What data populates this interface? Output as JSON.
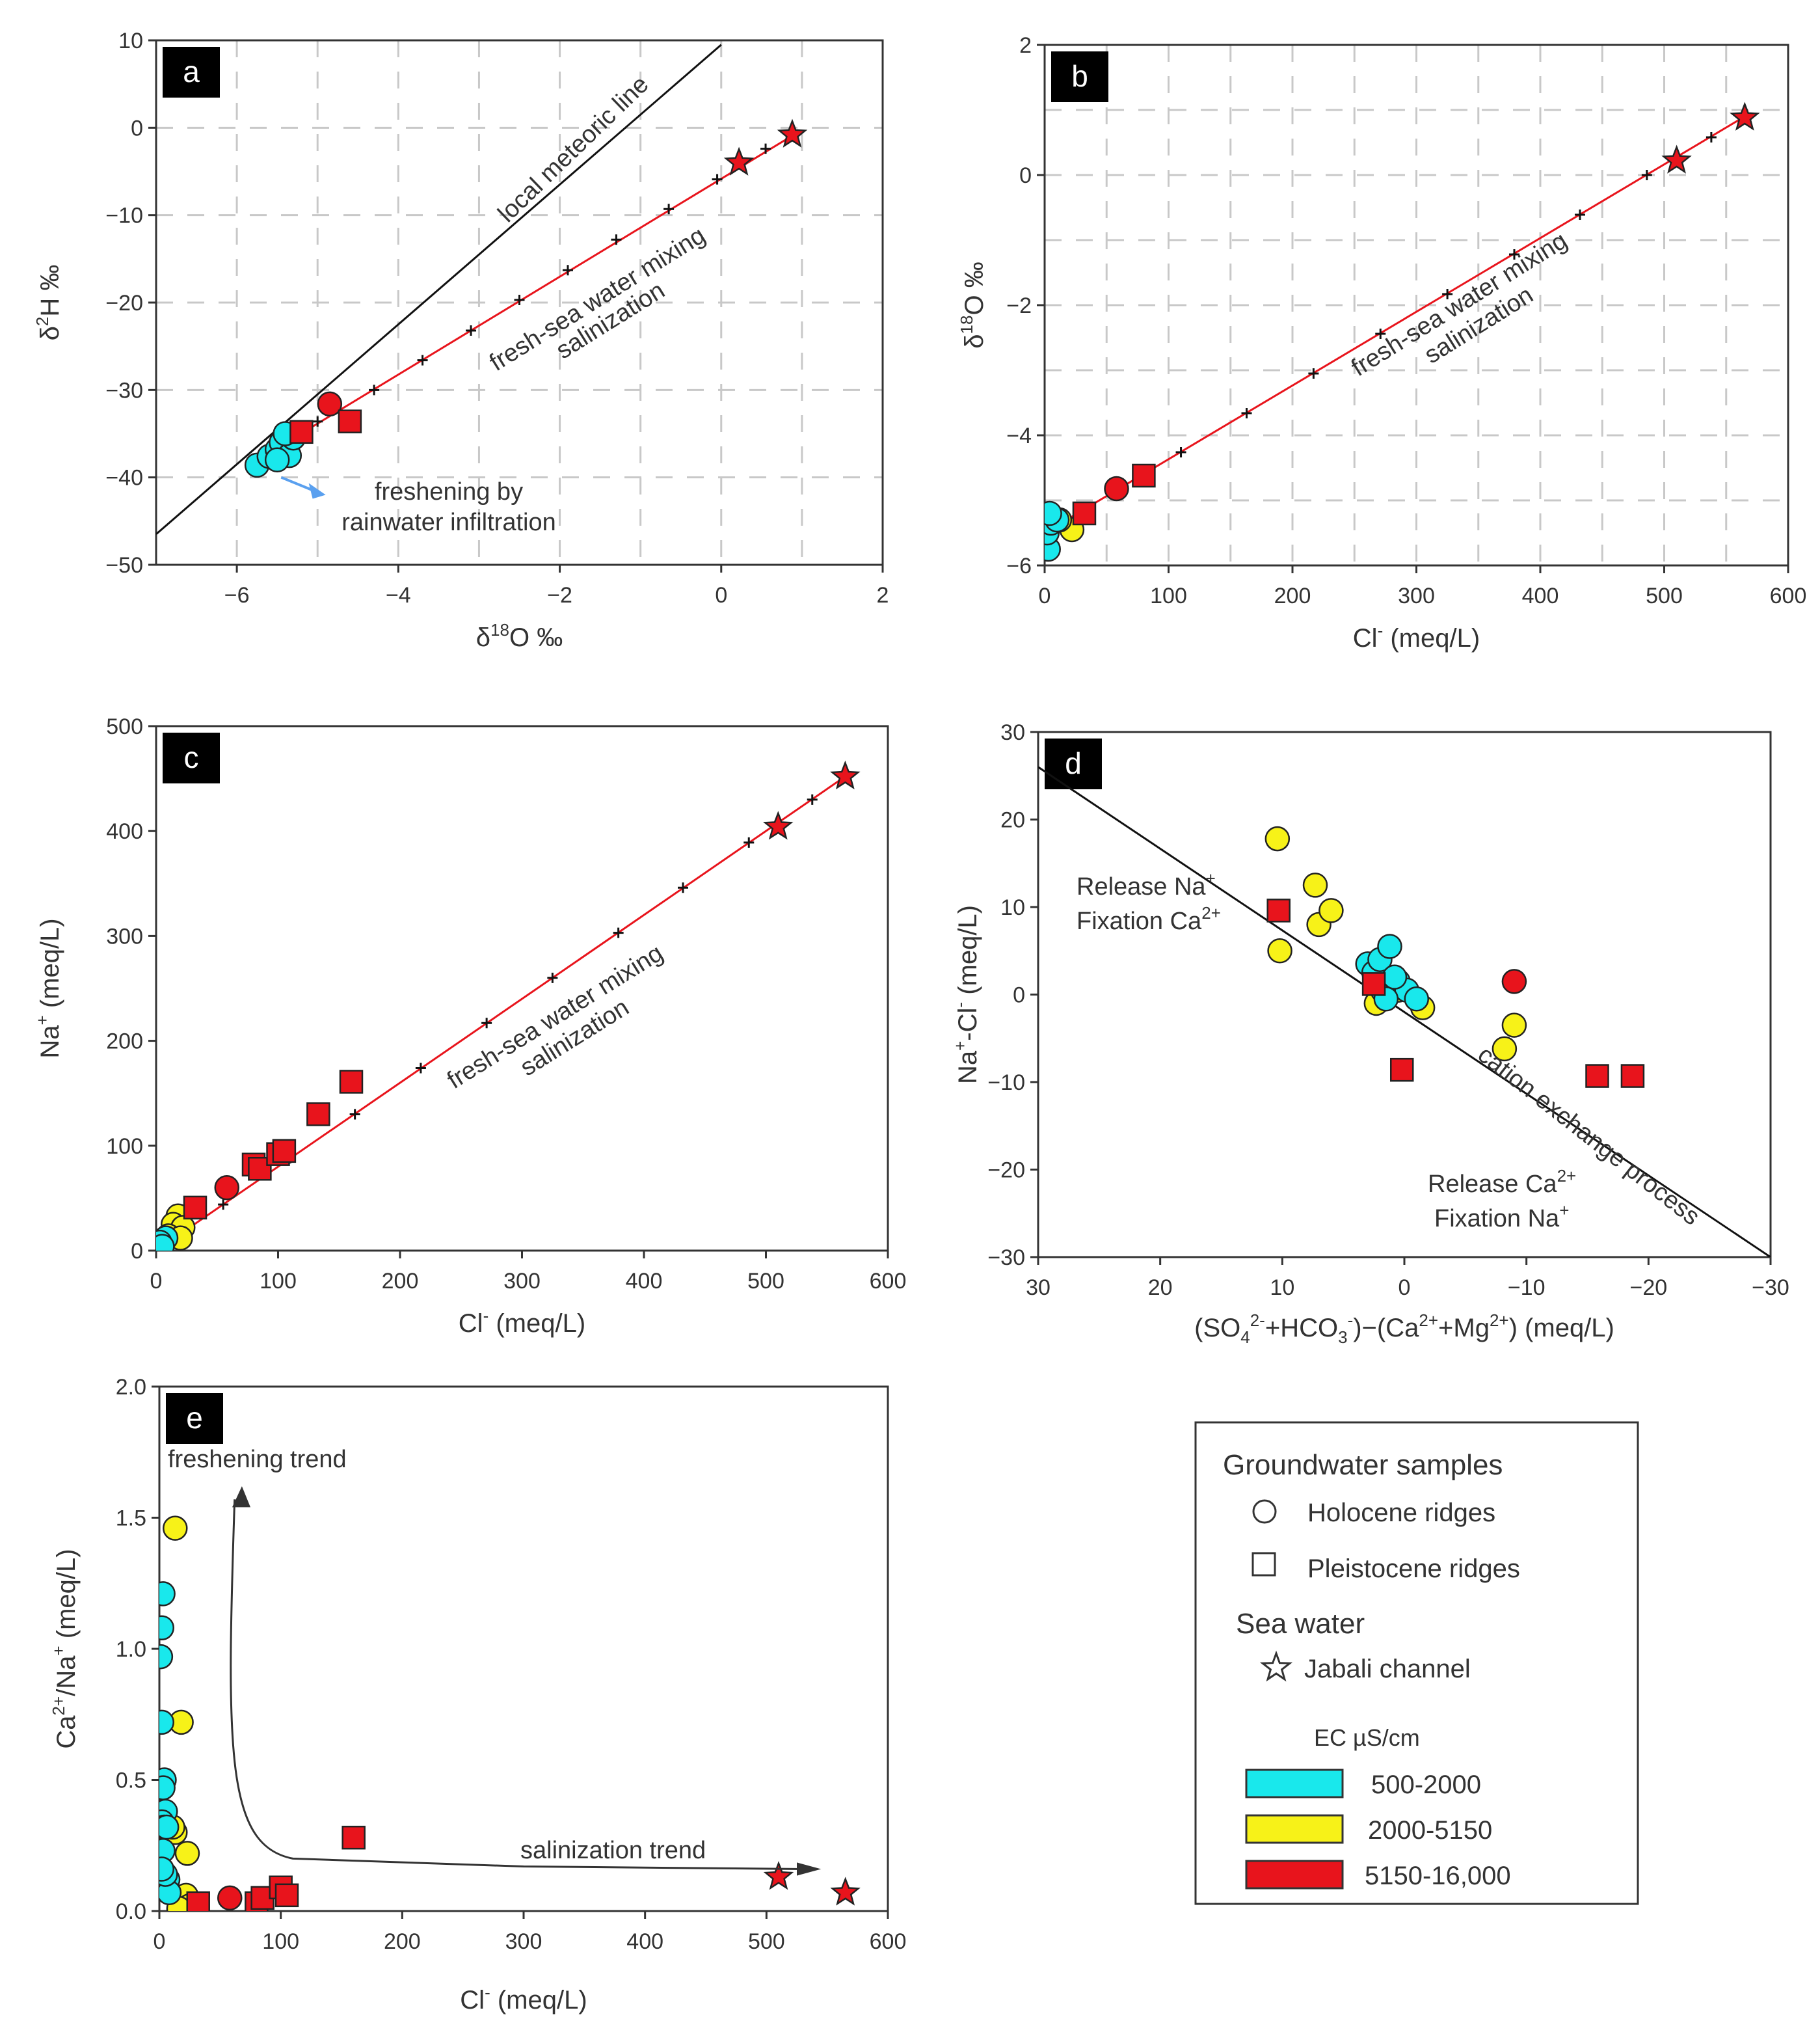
{
  "colors": {
    "cyan": "#19e8ec",
    "yellow": "#f7f218",
    "red": "#e8141c",
    "line_red": "#e8141c",
    "arrow_blue": "#5aa0ef",
    "grid": "#c8c8c8",
    "axis": "#333333"
  },
  "chart_data": [
    {
      "id": "a",
      "type": "scatter",
      "panel_label": "a",
      "xlabel": "δ18O ‰",
      "xlabel_main": "δ",
      "xlabel_sup": "18",
      "xlabel_tail": "O ‰",
      "ylabel": "δ2H ‰",
      "ylabel_main": "δ",
      "ylabel_sup": "2",
      "ylabel_tail": "H ‰",
      "xlim": [
        -7,
        2
      ],
      "ylim": [
        -50,
        10
      ],
      "xticks": [
        -6,
        -4,
        -2,
        0,
        2
      ],
      "xtick_labels": [
        "−6",
        "−4",
        "−2",
        "0",
        "2"
      ],
      "yticks": [
        10,
        0,
        -10,
        -20,
        -30,
        -40,
        -50
      ],
      "ytick_labels": [
        "10",
        "0",
        "−10",
        "−20",
        "−30",
        "−40",
        "−50"
      ],
      "grid": true,
      "meteoric_line": {
        "x": [
          -7,
          0
        ],
        "y": [
          -46.5,
          9.5
        ]
      },
      "mixing_line": {
        "x": [
          -5.6,
          0.9
        ],
        "y": [
          -37.2,
          -0.8
        ]
      },
      "mixing_ticks": {
        "x": [
          -5.0,
          -4.3,
          -3.7,
          -3.1,
          -2.5,
          -1.9,
          -1.3,
          -0.65,
          -0.05,
          0.55
        ],
        "y": [
          -33.6,
          -30.0,
          -26.6,
          -23.2,
          -19.7,
          -16.3,
          -12.8,
          -9.3,
          -5.9,
          -2.4
        ]
      },
      "annotations": [
        "local meteoric line",
        "fresh-sea water mixing",
        "salinization",
        "freshening by",
        "rainwater infiltration"
      ],
      "series": [
        {
          "name": "Holocene ridges 500-2000",
          "marker": "circle",
          "color": "cyan",
          "x": [
            -5.75,
            -5.6,
            -5.5,
            -5.45,
            -5.35,
            -5.3,
            -5.5,
            -5.4
          ],
          "y": [
            -38.6,
            -37.6,
            -36.8,
            -36.0,
            -37.5,
            -35.5,
            -38.0,
            -35.0
          ]
        },
        {
          "name": "Holocene ridges 5150-16,000",
          "marker": "circle",
          "color": "red",
          "x": [
            -4.85
          ],
          "y": [
            -31.6
          ]
        },
        {
          "name": "Pleistocene ridges 5150-16,000",
          "marker": "square",
          "color": "red",
          "x": [
            -5.2,
            -4.6
          ],
          "y": [
            -34.8,
            -33.6
          ]
        },
        {
          "name": "Jabali channel",
          "marker": "star",
          "color": "red",
          "x": [
            0.22,
            0.88
          ],
          "y": [
            -4.0,
            -0.8
          ]
        }
      ]
    },
    {
      "id": "b",
      "type": "scatter",
      "panel_label": "b",
      "xlabel": "Cl- (meq/L)",
      "xlabel_main": "Cl",
      "xlabel_sup": "-",
      "xlabel_tail": " (meq/L)",
      "ylabel": "δ18O ‰",
      "ylabel_main": "δ",
      "ylabel_sup": "18",
      "ylabel_tail": "O ‰",
      "xlim": [
        0,
        600
      ],
      "ylim": [
        -6,
        2
      ],
      "xticks": [
        0,
        100,
        200,
        300,
        400,
        500,
        600
      ],
      "xtick_labels": [
        "0",
        "100",
        "200",
        "300",
        "400",
        "500",
        "600"
      ],
      "yticks": [
        2,
        0,
        -2,
        -4,
        -6
      ],
      "ytick_labels": [
        "2",
        "0",
        "−2",
        "−4",
        "−6"
      ],
      "grid": true,
      "mixing_line": {
        "x": [
          0,
          565
        ],
        "y": [
          -5.5,
          0.9
        ]
      },
      "mixing_ticks": {
        "x": [
          0,
          55,
          110,
          163,
          217,
          271,
          325,
          379,
          432,
          486,
          538
        ],
        "y": [
          -5.5,
          -4.88,
          -4.26,
          -3.66,
          -3.05,
          -2.44,
          -1.83,
          -1.22,
          -0.61,
          0.0,
          0.58
        ]
      },
      "annotations": [
        "fresh-sea water mixing",
        "salinization"
      ],
      "series": [
        {
          "name": "Holocene ridges 2000-5150",
          "marker": "circle",
          "color": "yellow",
          "x": [
            22,
            12
          ],
          "y": [
            -5.45,
            -5.3
          ]
        },
        {
          "name": "Holocene ridges 500-2000",
          "marker": "circle",
          "color": "cyan",
          "x": [
            3,
            2,
            5,
            10,
            4
          ],
          "y": [
            -5.75,
            -5.5,
            -5.35,
            -5.3,
            -5.2
          ]
        },
        {
          "name": "Holocene ridges 5150-16,000",
          "marker": "circle",
          "color": "red",
          "x": [
            58
          ],
          "y": [
            -4.82
          ]
        },
        {
          "name": "Pleistocene ridges 5150-16,000",
          "marker": "square",
          "color": "red",
          "x": [
            32,
            80
          ],
          "y": [
            -5.2,
            -4.62
          ]
        },
        {
          "name": "Jabali channel",
          "marker": "star",
          "color": "red",
          "x": [
            510,
            565
          ],
          "y": [
            0.22,
            0.88
          ]
        }
      ]
    },
    {
      "id": "c",
      "type": "scatter",
      "panel_label": "c",
      "xlabel": "Cl- (meq/L)",
      "xlabel_main": "Cl",
      "xlabel_sup": "-",
      "xlabel_tail": " (meq/L)",
      "ylabel": "Na+ (meq/L)",
      "ylabel_main": "Na",
      "ylabel_sup": "+",
      "ylabel_tail": " (meq/L)",
      "xlim": [
        0,
        600
      ],
      "ylim": [
        0,
        500
      ],
      "xticks": [
        0,
        100,
        200,
        300,
        400,
        500,
        600
      ],
      "xtick_labels": [
        "0",
        "100",
        "200",
        "300",
        "400",
        "500",
        "600"
      ],
      "yticks": [
        500,
        400,
        300,
        200,
        100,
        0
      ],
      "ytick_labels": [
        "500",
        "400",
        "300",
        "200",
        "100",
        "0"
      ],
      "grid": false,
      "mixing_line": {
        "x": [
          0,
          565
        ],
        "y": [
          0,
          452
        ]
      },
      "mixing_ticks": {
        "x": [
          55,
          110,
          163,
          217,
          271,
          325,
          379,
          432,
          486,
          538
        ],
        "y": [
          44,
          88,
          130,
          174,
          217,
          260,
          303,
          346,
          389,
          430
        ]
      },
      "annotations": [
        "fresh-sea water mixing",
        "salinization"
      ],
      "series": [
        {
          "name": "Holocene ridges 2000-5150",
          "marker": "circle",
          "color": "yellow",
          "x": [
            18,
            14,
            22,
            10,
            20
          ],
          "y": [
            33,
            25,
            22,
            14,
            12
          ]
        },
        {
          "name": "Holocene ridges 500-2000",
          "marker": "circle",
          "color": "cyan",
          "x": [
            2,
            4,
            6,
            8,
            3,
            5
          ],
          "y": [
            3,
            6,
            9,
            12,
            8,
            4
          ]
        },
        {
          "name": "Holocene ridges 5150-16,000",
          "marker": "circle",
          "color": "red",
          "x": [
            58
          ],
          "y": [
            60
          ]
        },
        {
          "name": "Pleistocene ridges 5150-16,000",
          "marker": "square",
          "color": "red",
          "x": [
            32,
            80,
            85,
            100,
            105,
            133,
            160
          ],
          "y": [
            41,
            82,
            78,
            92,
            95,
            130,
            161
          ]
        },
        {
          "name": "Jabali channel",
          "marker": "star",
          "color": "red",
          "x": [
            510,
            565
          ],
          "y": [
            404,
            452
          ]
        }
      ]
    },
    {
      "id": "d",
      "type": "scatter",
      "panel_label": "d",
      "xlabel": "(SO42-+HCO3-)−(Ca2++Mg2+)  (meq/L)",
      "ylabel": "Na+-Cl- (meq/L)",
      "ylabel_main": "Na",
      "ylabel_sup": "+",
      "ylabel_tail": "-Cl",
      "ylabel_sup2": "-",
      "ylabel_tail2": " (meq/L)",
      "xlim": [
        30,
        -30
      ],
      "ylim": [
        -30,
        30
      ],
      "xticks": [
        30,
        20,
        10,
        0,
        -10,
        -20,
        -30
      ],
      "xtick_labels": [
        "30",
        "20",
        "10",
        "0",
        "−10",
        "−20",
        "−30"
      ],
      "yticks": [
        30,
        20,
        10,
        0,
        -10,
        -20,
        -30
      ],
      "ytick_labels": [
        "30",
        "20",
        "10",
        "0",
        "−10",
        "−20",
        "−30"
      ],
      "grid": false,
      "exchange_line": {
        "x": [
          30,
          -30
        ],
        "y": [
          26,
          -30
        ]
      },
      "annotations": [
        "Release Na+",
        "Fixation Ca2+",
        "Release Ca2+",
        "Fixation Na+",
        "cation exchange process"
      ],
      "series": [
        {
          "name": "Holocene ridges 2000-5150",
          "marker": "circle",
          "color": "yellow",
          "x": [
            10.4,
            10.2,
            7.3,
            7.0,
            6.0,
            2.3,
            0.5,
            -1.5,
            -8.2,
            -9.0
          ],
          "y": [
            17.8,
            5.0,
            12.5,
            8.0,
            9.6,
            -1.0,
            0.5,
            -1.5,
            -6.2,
            -3.5
          ]
        },
        {
          "name": "Holocene ridges 500-2000",
          "marker": "circle",
          "color": "cyan",
          "x": [
            3.0,
            2.5,
            2.0,
            1.8,
            1.2,
            0.5,
            -0.2,
            -1.0,
            1.5,
            0.8
          ],
          "y": [
            3.5,
            2.5,
            4.0,
            0.5,
            5.5,
            1.5,
            0.5,
            -0.5,
            -0.5,
            2.0
          ]
        },
        {
          "name": "Holocene ridges 5150-16,000",
          "marker": "circle",
          "color": "red",
          "x": [
            -9.0
          ],
          "y": [
            1.5
          ]
        },
        {
          "name": "Pleistocene ridges 5150-16,000",
          "marker": "square",
          "color": "red",
          "x": [
            10.3,
            2.5,
            0.2,
            -15.8,
            -18.7
          ],
          "y": [
            9.6,
            1.2,
            -8.6,
            -9.3,
            -9.3
          ]
        }
      ]
    },
    {
      "id": "e",
      "type": "scatter",
      "panel_label": "e",
      "xlabel": "Cl- (meq/L)",
      "xlabel_main": "Cl",
      "xlabel_sup": "-",
      "xlabel_tail": " (meq/L)",
      "ylabel": "Ca2+/Na+ (meq/L)",
      "ylabel_main": "Ca",
      "ylabel_sup": "2+",
      "ylabel_tail": "/Na",
      "ylabel_sup2": "+",
      "ylabel_tail2": " (meq/L)",
      "xlim": [
        0,
        600
      ],
      "ylim": [
        0,
        2.0
      ],
      "xticks": [
        0,
        100,
        200,
        300,
        400,
        500,
        600
      ],
      "xtick_labels": [
        "0",
        "100",
        "200",
        "300",
        "400",
        "500",
        "600"
      ],
      "yticks": [
        2.0,
        1.5,
        1.0,
        0.5,
        0.0
      ],
      "ytick_labels": [
        "2.0",
        "1.5",
        "1.0",
        "0.5",
        "0.0"
      ],
      "grid": false,
      "annotations": [
        "freshening trend",
        "salinization trend"
      ],
      "series": [
        {
          "name": "Holocene ridges 2000-5150",
          "marker": "circle",
          "color": "yellow",
          "x": [
            13,
            18,
            23,
            13,
            15,
            22,
            20,
            25,
            16,
            11
          ],
          "y": [
            1.46,
            0.72,
            0.22,
            0.3,
            0.05,
            0.06,
            0.0,
            0.02,
            0.01,
            0.32
          ]
        },
        {
          "name": "Holocene ridges 500-2000",
          "marker": "circle",
          "color": "cyan",
          "x": [
            3,
            2,
            1,
            2,
            4,
            3,
            5,
            2,
            4,
            3,
            6,
            7,
            8,
            5,
            2
          ],
          "y": [
            1.21,
            1.08,
            0.97,
            0.72,
            0.5,
            0.47,
            0.38,
            0.34,
            0.32,
            0.23,
            0.32,
            0.12,
            0.07,
            0.14,
            0.16
          ]
        },
        {
          "name": "Holocene ridges 5150-16,000",
          "marker": "circle",
          "color": "red",
          "x": [
            58
          ],
          "y": [
            0.05
          ]
        },
        {
          "name": "Pleistocene ridges 5150-16,000",
          "marker": "square",
          "color": "red",
          "x": [
            32,
            80,
            85,
            100,
            105,
            160
          ],
          "y": [
            0.03,
            0.03,
            0.05,
            0.09,
            0.06,
            0.28
          ]
        },
        {
          "name": "Jabali channel",
          "marker": "star",
          "color": "red",
          "x": [
            510,
            565
          ],
          "y": [
            0.13,
            0.07
          ]
        }
      ]
    }
  ],
  "legend": {
    "groundwater_title": "Groundwater samples",
    "holocene": "Holocene ridges",
    "pleistocene": "Pleistocene ridges",
    "seawater_title": "Sea water",
    "jabali": "Jabali channel",
    "ec_title": "EC µS/cm",
    "ec_classes": [
      {
        "label": "500-2000",
        "color": "cyan"
      },
      {
        "label": "2000-5150",
        "color": "yellow"
      },
      {
        "label": "5150-16,000",
        "color": "red"
      }
    ]
  }
}
